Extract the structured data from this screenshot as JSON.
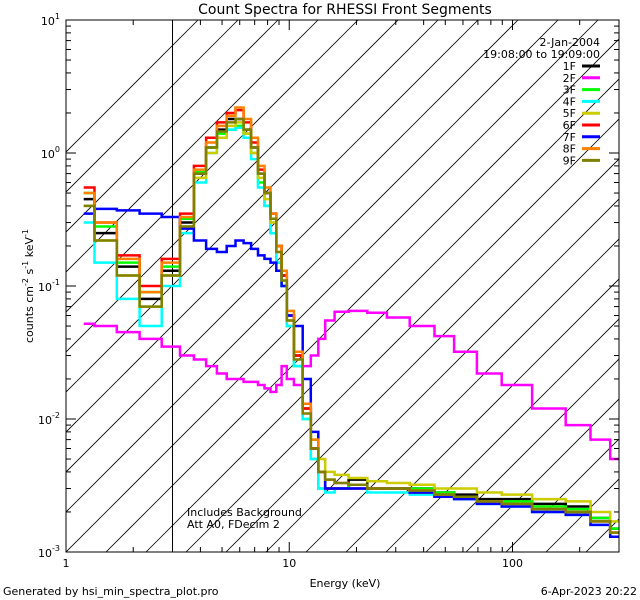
{
  "chart_data": {
    "type": "line",
    "title": "Count Spectra for RHESSI Front Segments",
    "xlabel": "Energy (keV)",
    "ylabel": "counts cm^-2 s^-1 keV^-1",
    "xscale": "log",
    "yscale": "log",
    "xlim": [
      1,
      300
    ],
    "ylim": [
      0.001,
      10
    ],
    "x_ticks": [
      {
        "value": 1,
        "label": "1"
      },
      {
        "value": 10,
        "label": "10"
      },
      {
        "value": 100,
        "label": "100"
      }
    ],
    "y_ticks": [
      {
        "value": 10,
        "base": "10",
        "exp": "1"
      },
      {
        "value": 1,
        "base": "10",
        "exp": "0"
      },
      {
        "value": 0.1,
        "base": "10",
        "exp": "-1"
      },
      {
        "value": 0.01,
        "base": "10",
        "exp": "-2"
      },
      {
        "value": 0.001,
        "base": "10",
        "exp": "-3"
      }
    ],
    "shaded_region": {
      "x_from": 1,
      "x_to": 3,
      "pattern": "hatched"
    },
    "date": "2-Jan-2004",
    "time_range": "19:08:00 to 19:09:00",
    "annotations": [
      "Includes Background",
      "Att A0, FDecim 2"
    ],
    "footer_left": "Generated by hsi_min_spectra_plot.pro",
    "footer_right": "6-Apr-2023 20:22",
    "x": [
      1.2,
      1.5,
      1.9,
      2.4,
      3.0,
      3.5,
      4.0,
      4.5,
      5.0,
      5.5,
      6.0,
      6.5,
      7.0,
      7.5,
      8.0,
      8.5,
      9.0,
      9.5,
      10.0,
      11.0,
      12.0,
      13.0,
      14.0,
      15.0,
      17.0,
      20.0,
      25.0,
      30.0,
      40.0,
      50.0,
      60.0,
      80.0,
      100.0,
      150.0,
      200.0,
      250.0,
      300.0
    ],
    "series": [
      {
        "name": "1F",
        "color": "#000000",
        "values": [
          0.45,
          0.25,
          0.14,
          0.08,
          0.13,
          0.3,
          0.7,
          1.1,
          1.5,
          1.8,
          1.8,
          1.5,
          1.1,
          0.7,
          0.5,
          0.35,
          0.2,
          0.12,
          0.06,
          0.03,
          0.012,
          0.006,
          0.004,
          0.003,
          0.003,
          0.0035,
          0.003,
          0.003,
          0.003,
          0.0028,
          0.0027,
          0.0025,
          0.0025,
          0.0023,
          0.0022,
          0.0018,
          0.0015
        ]
      },
      {
        "name": "2F",
        "color": "#ff00ff",
        "values": [
          0.052,
          0.05,
          0.045,
          0.04,
          0.035,
          0.03,
          0.028,
          0.025,
          0.022,
          0.02,
          0.02,
          0.019,
          0.019,
          0.018,
          0.017,
          0.016,
          0.018,
          0.025,
          0.02,
          0.018,
          0.025,
          0.03,
          0.04,
          0.055,
          0.064,
          0.065,
          0.063,
          0.058,
          0.05,
          0.042,
          0.032,
          0.022,
          0.018,
          0.012,
          0.009,
          0.007,
          0.005
        ]
      },
      {
        "name": "3F",
        "color": "#00ff00",
        "values": [
          0.5,
          0.28,
          0.15,
          0.09,
          0.14,
          0.32,
          0.72,
          1.1,
          1.4,
          1.5,
          1.6,
          1.4,
          1.0,
          0.6,
          0.4,
          0.25,
          0.15,
          0.1,
          0.05,
          0.025,
          0.01,
          0.005,
          0.003,
          0.003,
          0.003,
          0.0032,
          0.003,
          0.003,
          0.003,
          0.0028,
          0.0026,
          0.0024,
          0.0024,
          0.0022,
          0.0021,
          0.0018,
          0.0015
        ]
      },
      {
        "name": "4F",
        "color": "#00ffff",
        "values": [
          0.3,
          0.15,
          0.08,
          0.05,
          0.1,
          0.25,
          0.6,
          1.0,
          1.3,
          1.5,
          1.55,
          1.3,
          0.9,
          0.55,
          0.4,
          0.25,
          0.15,
          0.1,
          0.05,
          0.025,
          0.01,
          0.005,
          0.003,
          0.0028,
          0.003,
          0.003,
          0.0028,
          0.0028,
          0.0027,
          0.0026,
          0.0025,
          0.0023,
          0.0022,
          0.002,
          0.0019,
          0.0016,
          0.0013
        ]
      },
      {
        "name": "5F",
        "color": "#cccc00",
        "values": [
          0.4,
          0.22,
          0.12,
          0.07,
          0.12,
          0.28,
          0.65,
          1.0,
          1.3,
          1.6,
          1.7,
          1.4,
          1.0,
          0.65,
          0.45,
          0.3,
          0.18,
          0.11,
          0.055,
          0.03,
          0.012,
          0.007,
          0.005,
          0.004,
          0.0038,
          0.0036,
          0.0034,
          0.0033,
          0.0032,
          0.003,
          0.003,
          0.0028,
          0.0027,
          0.0025,
          0.0024,
          0.002,
          0.0017
        ]
      },
      {
        "name": "6F",
        "color": "#ff0000",
        "values": [
          0.55,
          0.3,
          0.17,
          0.1,
          0.16,
          0.35,
          0.8,
          1.3,
          1.7,
          2.0,
          2.1,
          1.7,
          1.2,
          0.75,
          0.5,
          0.35,
          0.2,
          0.12,
          0.06,
          0.03,
          0.012,
          0.006,
          0.004,
          0.003,
          0.003,
          0.003,
          0.003,
          0.003,
          0.0028,
          0.0027,
          0.0026,
          0.0024,
          0.0023,
          0.0021,
          0.002,
          0.0017,
          0.0014
        ]
      },
      {
        "name": "7F",
        "color": "#0000ff",
        "values": [
          0.35,
          0.38,
          0.37,
          0.35,
          0.33,
          0.27,
          0.22,
          0.19,
          0.18,
          0.2,
          0.22,
          0.21,
          0.19,
          0.17,
          0.16,
          0.15,
          0.13,
          0.1,
          0.06,
          0.05,
          0.02,
          0.008,
          0.004,
          0.003,
          0.003,
          0.003,
          0.003,
          0.003,
          0.0028,
          0.0026,
          0.0025,
          0.0023,
          0.0022,
          0.002,
          0.0019,
          0.0016,
          0.0013
        ]
      },
      {
        "name": "8F",
        "color": "#ff8000",
        "values": [
          0.5,
          0.3,
          0.16,
          0.09,
          0.15,
          0.33,
          0.75,
          1.2,
          1.6,
          1.9,
          2.2,
          1.8,
          1.3,
          0.8,
          0.55,
          0.35,
          0.2,
          0.13,
          0.065,
          0.032,
          0.013,
          0.007,
          0.004,
          0.0035,
          0.0033,
          0.0032,
          0.003,
          0.003,
          0.0029,
          0.0027,
          0.0026,
          0.0024,
          0.0023,
          0.0021,
          0.002,
          0.0017,
          0.0014
        ]
      },
      {
        "name": "9F",
        "color": "#808000",
        "values": [
          0.4,
          0.22,
          0.12,
          0.07,
          0.12,
          0.28,
          0.7,
          1.1,
          1.45,
          1.7,
          1.8,
          1.5,
          1.1,
          0.7,
          0.5,
          0.32,
          0.18,
          0.11,
          0.055,
          0.028,
          0.011,
          0.006,
          0.004,
          0.0035,
          0.0033,
          0.0032,
          0.003,
          0.003,
          0.0029,
          0.0027,
          0.0026,
          0.0024,
          0.0023,
          0.0021,
          0.002,
          0.0017,
          0.0014
        ]
      }
    ]
  }
}
